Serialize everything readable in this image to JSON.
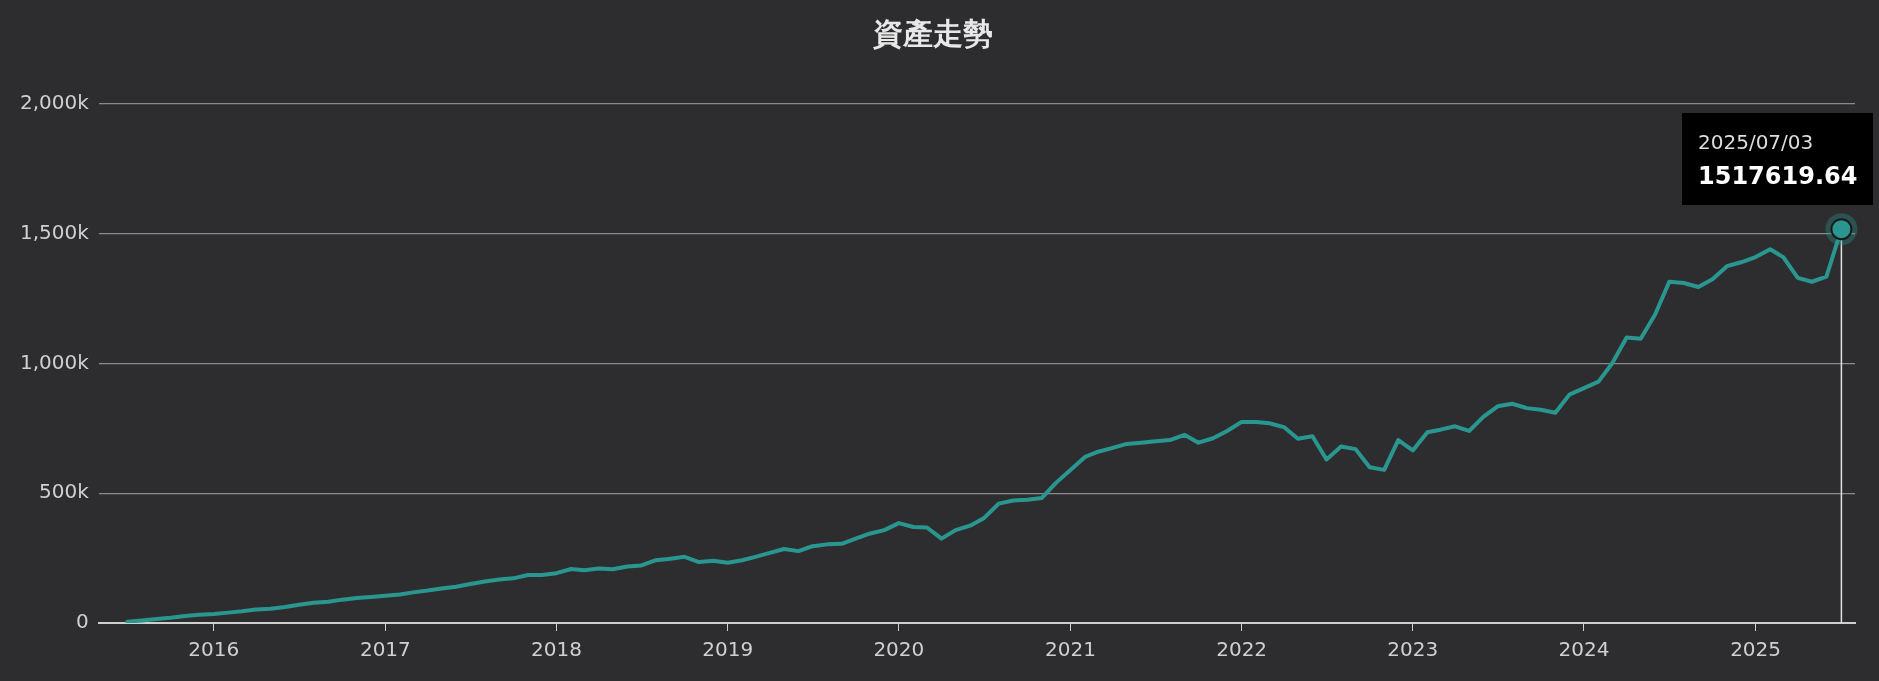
{
  "chart_data": {
    "type": "line",
    "title": "資產走勢",
    "x": [
      "2015-07",
      "2015-08",
      "2015-09",
      "2015-10",
      "2015-11",
      "2015-12",
      "2016-01",
      "2016-02",
      "2016-03",
      "2016-04",
      "2016-05",
      "2016-06",
      "2016-07",
      "2016-08",
      "2016-09",
      "2016-10",
      "2016-11",
      "2016-12",
      "2017-01",
      "2017-02",
      "2017-03",
      "2017-04",
      "2017-05",
      "2017-06",
      "2017-07",
      "2017-08",
      "2017-09",
      "2017-10",
      "2017-11",
      "2017-12",
      "2018-01",
      "2018-02",
      "2018-03",
      "2018-04",
      "2018-05",
      "2018-06",
      "2018-07",
      "2018-08",
      "2018-09",
      "2018-10",
      "2018-11",
      "2018-12",
      "2019-01",
      "2019-02",
      "2019-03",
      "2019-04",
      "2019-05",
      "2019-06",
      "2019-07",
      "2019-08",
      "2019-09",
      "2019-10",
      "2019-11",
      "2019-12",
      "2020-01",
      "2020-02",
      "2020-03",
      "2020-04",
      "2020-05",
      "2020-06",
      "2020-07",
      "2020-08",
      "2020-09",
      "2020-10",
      "2020-11",
      "2020-12",
      "2021-01",
      "2021-02",
      "2021-03",
      "2021-04",
      "2021-05",
      "2021-06",
      "2021-07",
      "2021-08",
      "2021-09",
      "2021-10",
      "2021-11",
      "2021-12",
      "2022-01",
      "2022-02",
      "2022-03",
      "2022-04",
      "2022-05",
      "2022-06",
      "2022-07",
      "2022-08",
      "2022-09",
      "2022-10",
      "2022-11",
      "2022-12",
      "2023-01",
      "2023-02",
      "2023-03",
      "2023-04",
      "2023-05",
      "2023-06",
      "2023-07",
      "2023-08",
      "2023-09",
      "2023-10",
      "2023-11",
      "2023-12",
      "2024-01",
      "2024-02",
      "2024-03",
      "2024-04",
      "2024-05",
      "2024-06",
      "2024-07",
      "2024-08",
      "2024-09",
      "2024-10",
      "2024-11",
      "2024-12",
      "2025-01",
      "2025-02",
      "2025-03",
      "2025-04",
      "2025-05",
      "2025-06",
      "2025-07-03"
    ],
    "series": [
      {
        "color": "#2a9690",
        "values": [
          5000,
          10000,
          15000,
          20000,
          27000,
          32000,
          35000,
          40000,
          45000,
          52000,
          55000,
          62000,
          70000,
          78000,
          82000,
          90000,
          96000,
          100000,
          105000,
          110000,
          118000,
          125000,
          133000,
          140000,
          150000,
          160000,
          168000,
          172000,
          185000,
          185000,
          192000,
          208000,
          203000,
          210000,
          207000,
          218000,
          222000,
          242000,
          248000,
          255000,
          235000,
          240000,
          232000,
          242000,
          255000,
          270000,
          285000,
          277000,
          296000,
          303000,
          305000,
          325000,
          345000,
          358000,
          385000,
          370000,
          368000,
          325000,
          358000,
          375000,
          405000,
          460000,
          472000,
          475000,
          482000,
          540000,
          590000,
          640000,
          660000,
          675000,
          690000,
          695000,
          700000,
          705000,
          725000,
          695000,
          712000,
          740000,
          775000,
          775000,
          770000,
          755000,
          710000,
          720000,
          630000,
          680000,
          670000,
          600000,
          590000,
          705000,
          665000,
          735000,
          745000,
          758000,
          740000,
          795000,
          835000,
          845000,
          828000,
          822000,
          810000,
          880000,
          905000,
          930000,
          1000000,
          1100000,
          1095000,
          1190000,
          1315000,
          1310000,
          1295000,
          1325000,
          1375000,
          1390000,
          1410000,
          1440000,
          1410000,
          1330000,
          1315000,
          1335000,
          1517619.64
        ]
      }
    ],
    "xlim": [
      "2015-05",
      "2025-08"
    ],
    "xticks": [
      "2016",
      "2017",
      "2018",
      "2019",
      "2020",
      "2021",
      "2022",
      "2023",
      "2024",
      "2025"
    ],
    "ylim": [
      0,
      2000000
    ],
    "yticks": [
      {
        "value": 0,
        "label": "0"
      },
      {
        "value": 500000,
        "label": "500k"
      },
      {
        "value": 1000000,
        "label": "1,000k"
      },
      {
        "value": 1500000,
        "label": "1,500k"
      },
      {
        "value": 2000000,
        "label": "2,000k"
      }
    ],
    "grid": "y",
    "legend": false,
    "marker": "none",
    "line_style": "solid",
    "ref_lines": [
      {
        "axis": "x",
        "value": "2025-07-03",
        "color": "#e0e0e0"
      }
    ],
    "annotations": [
      "2025/07/03",
      "1517619.64"
    ]
  }
}
